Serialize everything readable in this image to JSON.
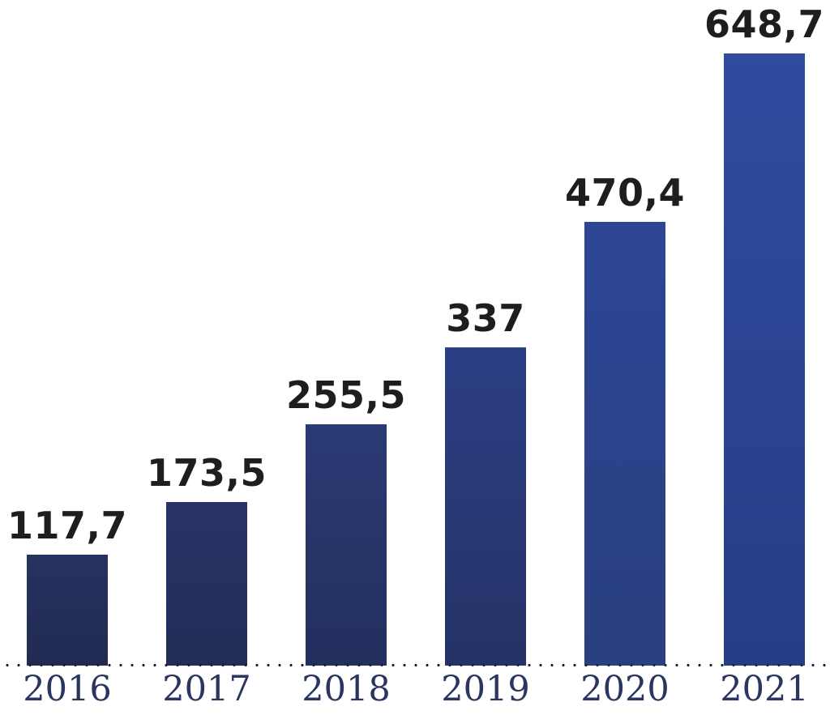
{
  "page": {
    "background": "#ffffff"
  },
  "chart_data": {
    "type": "bar",
    "title": "",
    "xlabel": "",
    "ylabel": "",
    "categories": [
      "2016",
      "2017",
      "2018",
      "2019",
      "2020",
      "2021"
    ],
    "values": [
      117.7,
      173.5,
      255.5,
      337,
      470.4,
      648.7
    ],
    "value_labels": [
      "117,7",
      "173,5",
      "255,5",
      "337",
      "470,4",
      "648,7"
    ],
    "ylim": [
      0,
      707
    ],
    "grid": false,
    "legend": false,
    "decimal_separator": ",",
    "baseline": {
      "style": "dotted",
      "color": "#1a2138"
    },
    "bar_gradients": [
      {
        "top": "#273260",
        "bottom": "#212b52"
      },
      {
        "top": "#283466",
        "bottom": "#222d57"
      },
      {
        "top": "#2a3a74",
        "bottom": "#232f5d"
      },
      {
        "top": "#2c3f85",
        "bottom": "#243265"
      },
      {
        "top": "#2d4695",
        "bottom": "#2a3f80"
      },
      {
        "top": "#2e4ba0",
        "bottom": "#273e85"
      }
    ],
    "value_label_color": "#1e1e1e",
    "category_label_color": "#2a3560"
  }
}
